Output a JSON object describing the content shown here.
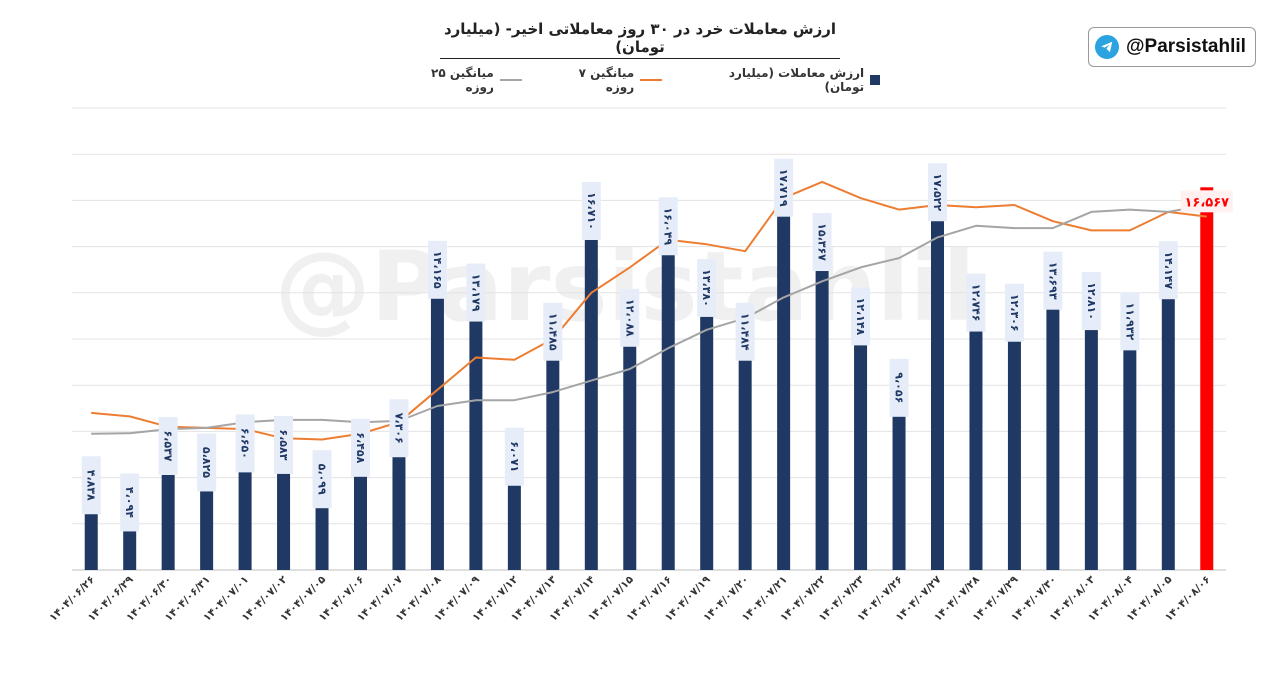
{
  "badge": {
    "handle": "@Parsistahlil",
    "icon": "telegram-icon",
    "icon_color": "#2AA3E0"
  },
  "watermark": "@Parsistahlil",
  "chart_data": {
    "type": "bar",
    "title": "ارزش معاملات خرد در ۳۰ روز معاملاتی اخیر- (میلیارد تومان)",
    "legend_position": "top",
    "grid": true,
    "ylim": [
      0,
      20000
    ],
    "categories": [
      "۱۴۰۴/۰۶/۲۶",
      "۱۴۰۴/۰۶/۲۹",
      "۱۴۰۴/۰۶/۳۰",
      "۱۴۰۴/۰۶/۳۱",
      "۱۴۰۴/۰۷/۰۱",
      "۱۴۰۴/۰۷/۰۲",
      "۱۴۰۴/۰۷/۰۵",
      "۱۴۰۴/۰۷/۰۶",
      "۱۴۰۴/۰۷/۰۷",
      "۱۴۰۴/۰۷/۰۸",
      "۱۴۰۴/۰۷/۰۹",
      "۱۴۰۴/۰۷/۱۲",
      "۱۴۰۴/۰۷/۱۳",
      "۱۴۰۴/۰۷/۱۴",
      "۱۴۰۴/۰۷/۱۵",
      "۱۴۰۴/۰۷/۱۶",
      "۱۴۰۴/۰۷/۱۹",
      "۱۴۰۴/۰۷/۲۰",
      "۱۴۰۴/۰۷/۲۱",
      "۱۴۰۴/۰۷/۲۲",
      "۱۴۰۴/۰۷/۲۳",
      "۱۴۰۴/۰۷/۲۶",
      "۱۴۰۴/۰۷/۲۷",
      "۱۴۰۴/۰۷/۲۸",
      "۱۴۰۴/۰۷/۲۹",
      "۱۴۰۴/۰۷/۳۰",
      "۱۴۰۴/۰۸/۰۳",
      "۱۴۰۴/۰۸/۰۴",
      "۱۴۰۴/۰۸/۰۵",
      "۱۴۰۴/۰۸/۰۶"
    ],
    "series": [
      {
        "name": "ارزش معاملات (میلیارد تومان)",
        "kind": "bar",
        "color": "#1F3864",
        "highlight_color": "#FF0000",
        "highlight_index": 29,
        "values": [
          4838,
          4094,
          6537,
          5825,
          6650,
          6583,
          5099,
          6458,
          7306,
          14165,
          13179,
          6071,
          11485,
          16710,
          12088,
          16049,
          13380,
          11484,
          17719,
          15367,
          12148,
          9056,
          17522,
          12746,
          12306,
          13693,
          12810,
          11932,
          14147,
          16567
        ],
        "labels": [
          "۴،۸۳۸",
          "۴،۰۹۴",
          "۶،۵۳۷",
          "۵،۸۲۵",
          "۶،۶۵۰",
          "۶،۵۸۳",
          "۵،۰۹۹",
          "۶،۴۵۸",
          "۷،۳۰۶",
          "۱۴،۱۶۵",
          "۱۳،۱۷۹",
          "۶،۰۷۱",
          "۱۱،۴۸۵",
          "۱۶،۷۱۰",
          "۱۲،۰۸۸",
          "۱۶،۰۴۹",
          "۱۳،۳۸۰",
          "۱۱،۴۸۴",
          "۱۷،۷۱۹",
          "۱۵،۳۶۷",
          "۱۲،۱۴۸",
          "۹،۰۵۶",
          "۱۷،۵۲۲",
          "۱۲،۷۴۶",
          "۱۲،۳۰۶",
          "۱۳،۶۹۳",
          "۱۲،۸۱۰",
          "۱۱،۹۳۲",
          "۱۴،۱۴۷",
          "۱۶،۵۶۷"
        ]
      },
      {
        "name": "میانگین ۷ روزه",
        "kind": "line",
        "color": "#ED7D31",
        "values": [
          6800,
          6650,
          6200,
          6150,
          6100,
          5700,
          5650,
          5900,
          6400,
          7800,
          9200,
          9100,
          10000,
          12000,
          13100,
          14300,
          14100,
          13800,
          16100,
          16800,
          16100,
          15600,
          15800,
          15700,
          15800,
          15100,
          14700,
          14700,
          15500,
          15300
        ]
      },
      {
        "name": "میانگین ۲۵ روزه",
        "kind": "line",
        "color": "#A5A5A5",
        "values": [
          5900,
          5920,
          6100,
          6150,
          6400,
          6500,
          6500,
          6400,
          6450,
          7100,
          7350,
          7350,
          7700,
          8200,
          8700,
          9600,
          10400,
          10900,
          11800,
          12500,
          13100,
          13500,
          14400,
          14900,
          14800,
          14800,
          15500,
          15600,
          15500,
          15800
        ]
      }
    ]
  }
}
